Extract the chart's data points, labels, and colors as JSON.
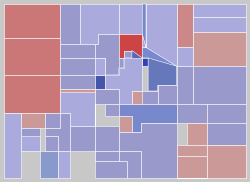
{
  "fig_bg": "#c8c8c8",
  "edge_color": "#ffffff",
  "edge_lw": 0.4,
  "county_colors": {
    "Moffat": "#cc7777",
    "Routt": "#9999cc",
    "Jackson": "#aaaadd",
    "Larimer": "#aaaadd",
    "Weld": "#aaaadd",
    "Logan": "#cc8888",
    "Sedgwick": "#aaaadd",
    "Phillips": "#aaaadd",
    "Yuma": "#cc9999",
    "Rio Blanco": "#cc7777",
    "Garfield": "#9999cc",
    "Eagle": "#9999cc",
    "Grand": "#9999cc",
    "Summit": "#aaaadd",
    "Boulder": "#cc4444",
    "Gilpin": "#9999cc",
    "Clear Creek": "#9999cc",
    "Jefferson": "#5566bb",
    "Adams": "#7788cc",
    "Morgan": "#aaaadd",
    "Washington": "#9999cc",
    "Kit Carson": "#9999cc",
    "Denver": "#3344aa",
    "Arapahoe": "#6677bb",
    "Douglas": "#9999cc",
    "Elbert": "#9999cc",
    "Pitkin": "#9999cc",
    "Lake": "#4455aa",
    "Chaffee": "#9999cc",
    "Park": "#aaaadd",
    "Teller": "#cc9999",
    "El Paso": "#dd9999",
    "Lincoln": "#9999cc",
    "Cheyenne": "#9999cc",
    "Mesa": "#cc7777",
    "Delta": "#cc9999",
    "Montrose": "#cc9999",
    "Ouray": "#9999cc",
    "Gunnison": "#aaaadd",
    "Saguache": "#9999cc",
    "Mineral": "#9999cc",
    "Rio Grande": "#9999cc",
    "Alamosa": "#9999cc",
    "Costilla": "#9999cc",
    "Conejos": "#9999cc",
    "Huerfano": "#9999cc",
    "Las Animas": "#9999cc",
    "Pueblo": "#7788cc",
    "Fremont": "#9999cc",
    "Custer": "#cc9999",
    "San Juan": "#9999cc",
    "Hinsdale": "#9999cc",
    "La Plata": "#8899cc",
    "Montezuma": "#aaaadd",
    "Dolores": "#aaaadd",
    "San Miguel": "#9999cc",
    "Archuleta": "#aaaadd",
    "Crowley": "#cc9999",
    "Otero": "#cc9999",
    "Bent": "#cc9999",
    "Prowers": "#cc9999",
    "Kiowa": "#9999cc",
    "Baca": "#cc9999"
  }
}
